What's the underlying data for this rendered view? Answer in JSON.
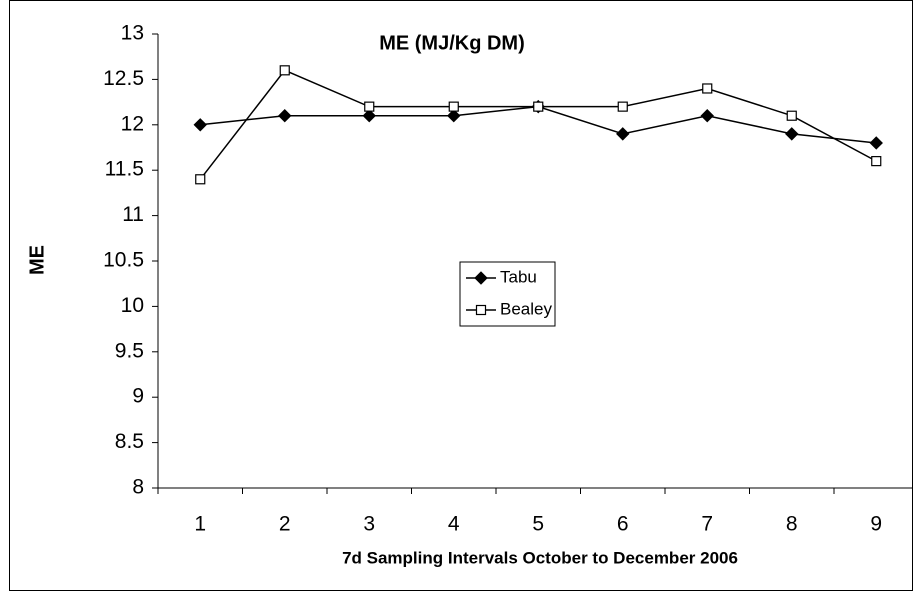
{
  "chart_data": {
    "type": "line",
    "title": "ME (MJ/Kg DM)",
    "x_label": "7d Sampling Intervals October to December 2006",
    "y_label": "ME",
    "categories": [
      "1",
      "2",
      "3",
      "4",
      "5",
      "6",
      "7",
      "8",
      "9"
    ],
    "series": [
      {
        "name": "Tabu",
        "color": "#000000",
        "marker": "diamond",
        "marker_fill": "#000000",
        "values": [
          12,
          12.1,
          12.1,
          12.1,
          12.2,
          11.9,
          12.1,
          11.9,
          11.8
        ]
      },
      {
        "name": "Bealey",
        "color": "#000000",
        "marker": "square",
        "marker_fill": "#ffffff",
        "values": [
          11.4,
          12.6,
          12.2,
          12.2,
          12.2,
          12.2,
          12.4,
          12.1,
          11.6
        ]
      }
    ],
    "ylim": [
      8,
      13
    ],
    "yticks": [
      8,
      8.5,
      9,
      9.5,
      10,
      10.5,
      11,
      11.5,
      12,
      12.5,
      13
    ],
    "grid": false,
    "legend": "center"
  }
}
